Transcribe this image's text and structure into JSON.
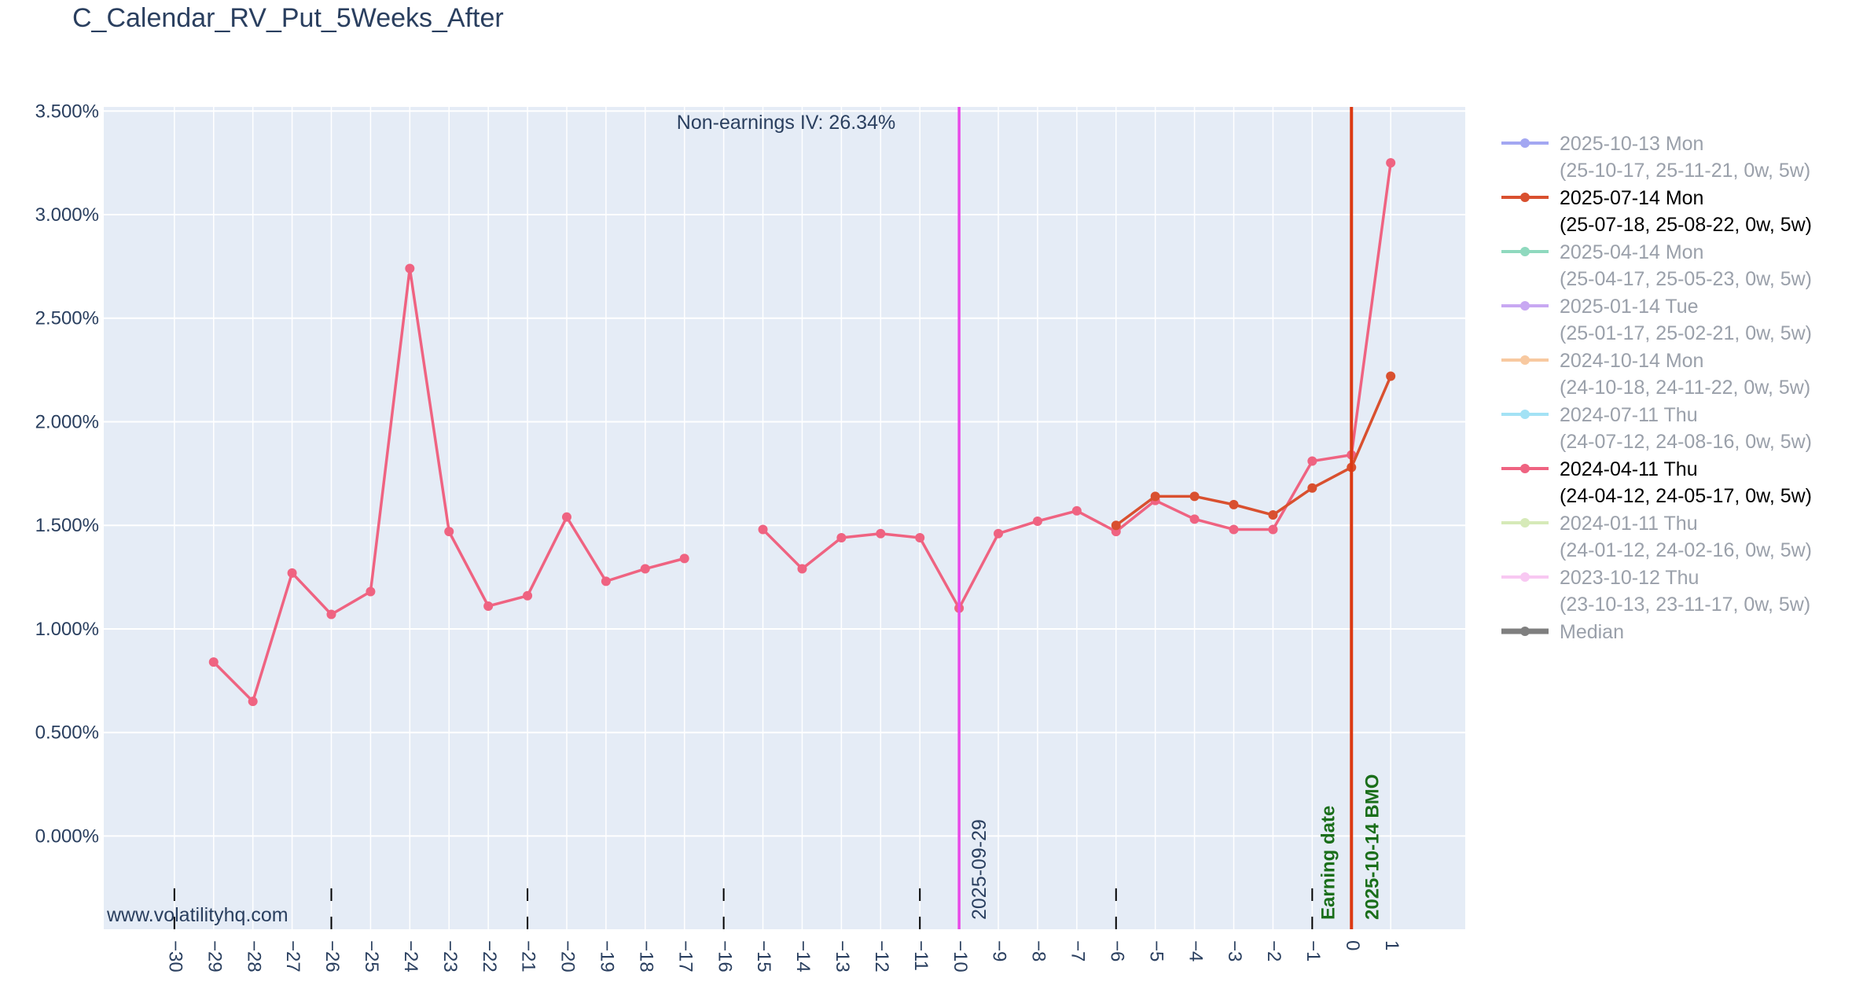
{
  "title": "C_Calendar_RV_Put_5Weeks_After",
  "watermark": "www.volatilityhq.com",
  "annotations": {
    "non_earnings_iv": "Non-earnings IV: 26.34%",
    "vline_date": "2025-09-29",
    "earning_date_label": "Earning date",
    "earning_date_value": "2025-10-14 BMO"
  },
  "colors": {
    "plot_bg": "#e5ecf6",
    "grid": "#ffffff",
    "magenta_line": "#e84ae8",
    "red_line": "#dc3912",
    "green_text": "#1a6e1a",
    "series_2024_04": "#ef6381",
    "series_2025_07": "#d9502f"
  },
  "legend": [
    {
      "line1": "2025-10-13 Mon",
      "line2": "(25-10-17, 25-11-21, 0w, 5w)",
      "color": "#a3a7f2",
      "active": false
    },
    {
      "line1": "2025-07-14 Mon",
      "line2": "(25-07-18, 25-08-22, 0w, 5w)",
      "color": "#d9502f",
      "active": true
    },
    {
      "line1": "2025-04-14 Mon",
      "line2": "(25-04-17, 25-05-23, 0w, 5w)",
      "color": "#8fd9be",
      "active": false
    },
    {
      "line1": "2025-01-14 Tue",
      "line2": "(25-01-17, 25-02-21, 0w, 5w)",
      "color": "#c8a8f2",
      "active": false
    },
    {
      "line1": "2024-10-14 Mon",
      "line2": "(24-10-18, 24-11-22, 0w, 5w)",
      "color": "#f8c9a0",
      "active": false
    },
    {
      "line1": "2024-07-11 Thu",
      "line2": "(24-07-12, 24-08-16, 0w, 5w)",
      "color": "#a3e2f5",
      "active": false
    },
    {
      "line1": "2024-04-11 Thu",
      "line2": "(24-04-12, 24-05-17, 0w, 5w)",
      "color": "#ef6381",
      "active": true
    },
    {
      "line1": "2024-01-11 Thu",
      "line2": "(24-01-12, 24-02-16, 0w, 5w)",
      "color": "#d6eab8",
      "active": false
    },
    {
      "line1": "2023-10-12 Thu",
      "line2": "(23-10-13, 23-11-17, 0w, 5w)",
      "color": "#f8c8f2",
      "active": false
    },
    {
      "line1": "Median",
      "line2": "",
      "color": "#7f7f7f",
      "active": false,
      "thick": true
    }
  ],
  "chart_data": {
    "type": "line",
    "title": "C_Calendar_RV_Put_5Weeks_After",
    "xlim": [
      -31.8,
      2.9
    ],
    "ylim": [
      -0.45,
      3.52
    ],
    "ytick_values": [
      0,
      0.5,
      1.0,
      1.5,
      2.0,
      2.5,
      3.0,
      3.5
    ],
    "ytick_labels": [
      "0.000%",
      "0.500%",
      "1.000%",
      "1.500%",
      "2.000%",
      "2.500%",
      "3.000%",
      "3.500%"
    ],
    "xtick_values": [
      -30,
      -29,
      -28,
      -27,
      -26,
      -25,
      -24,
      -23,
      -22,
      -21,
      -20,
      -19,
      -18,
      -17,
      -16,
      -15,
      -14,
      -13,
      -12,
      -11,
      -10,
      -9,
      -8,
      -7,
      -6,
      -5,
      -4,
      -3,
      -2,
      -1,
      0,
      1
    ],
    "xtick_labels": [
      "−30",
      "−29",
      "−28",
      "−27",
      "−26",
      "−25",
      "−24",
      "−23",
      "−22",
      "−21",
      "−20",
      "−19",
      "−18",
      "−17",
      "−16",
      "−15",
      "−14",
      "−13",
      "−12",
      "−11",
      "−10",
      "−9",
      "−8",
      "−7",
      "−6",
      "−5",
      "−4",
      "−3",
      "−2",
      "−1",
      "0",
      "1"
    ],
    "week_markers": [
      -30,
      -26,
      -21,
      -16,
      -11,
      -6,
      -1
    ],
    "vline_magenta_x": -10,
    "vline_red_x": 0,
    "series": [
      {
        "name": "2024-04-11 Thu",
        "color": "#ef6381",
        "x": [
          -29,
          -28,
          -27,
          -26,
          -25,
          -24,
          -23,
          -22,
          -21,
          -20,
          -19,
          -18,
          -17,
          -16,
          -15,
          -14,
          -13,
          -12,
          -11,
          -10,
          -9,
          -8,
          -7,
          -6,
          -5,
          -4,
          -3,
          -2,
          -1,
          0,
          1
        ],
        "y": [
          0.84,
          0.65,
          1.27,
          1.07,
          1.18,
          2.74,
          1.47,
          1.11,
          1.16,
          1.54,
          1.23,
          1.29,
          1.34,
          null,
          1.48,
          1.29,
          1.44,
          1.46,
          1.44,
          1.1,
          1.46,
          1.52,
          1.57,
          1.47,
          1.62,
          1.53,
          1.48,
          1.48,
          1.81,
          1.84,
          3.25
        ]
      },
      {
        "name": "2025-07-14 Mon",
        "color": "#d9502f",
        "x": [
          -6,
          -5,
          -4,
          -3,
          -2,
          -1,
          0,
          1
        ],
        "y": [
          1.5,
          1.64,
          1.64,
          1.6,
          1.55,
          1.68,
          1.78,
          2.22
        ]
      }
    ]
  }
}
